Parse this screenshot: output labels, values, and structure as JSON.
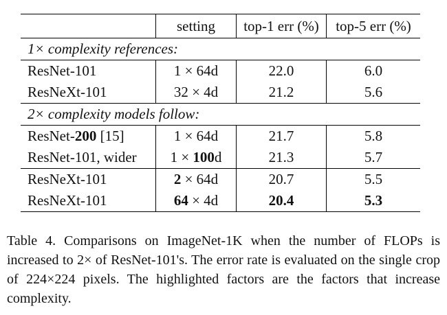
{
  "table": {
    "header": [
      "setting",
      "top-1 err (%)",
      "top-5 err (%)"
    ],
    "sections": [
      {
        "label": "1× complexity references:",
        "rows": [
          [
            "ResNet-101",
            "1 × 64d",
            "22.0",
            "6.0"
          ],
          [
            "ResNeXt-101",
            "32 × 4d",
            "21.2",
            "5.6"
          ]
        ]
      },
      {
        "label": "2× complexity models follow:",
        "rows": [
          [
            [
              "ResNet-",
              "200",
              " [15]"
            ],
            "1 × 64d",
            "21.7",
            "5.8"
          ],
          [
            "ResNet-101, wider",
            [
              "1 × ",
              "100",
              "d"
            ],
            "21.3",
            "5.7"
          ],
          [
            "ResNeXt-101",
            [
              "2",
              " × 64d"
            ],
            "20.7",
            "5.5"
          ],
          [
            "ResNeXt-101",
            [
              "64",
              " × 4d"
            ],
            "20.4",
            "5.3"
          ]
        ]
      }
    ]
  },
  "caption": "Table 4. Comparisons on ImageNet-1K when the number of FLOPs is increased to 2× of ResNet-101's. The error rate is evaluated on the single crop of 224×224 pixels. The highlighted factors are the factors that increase complexity."
}
